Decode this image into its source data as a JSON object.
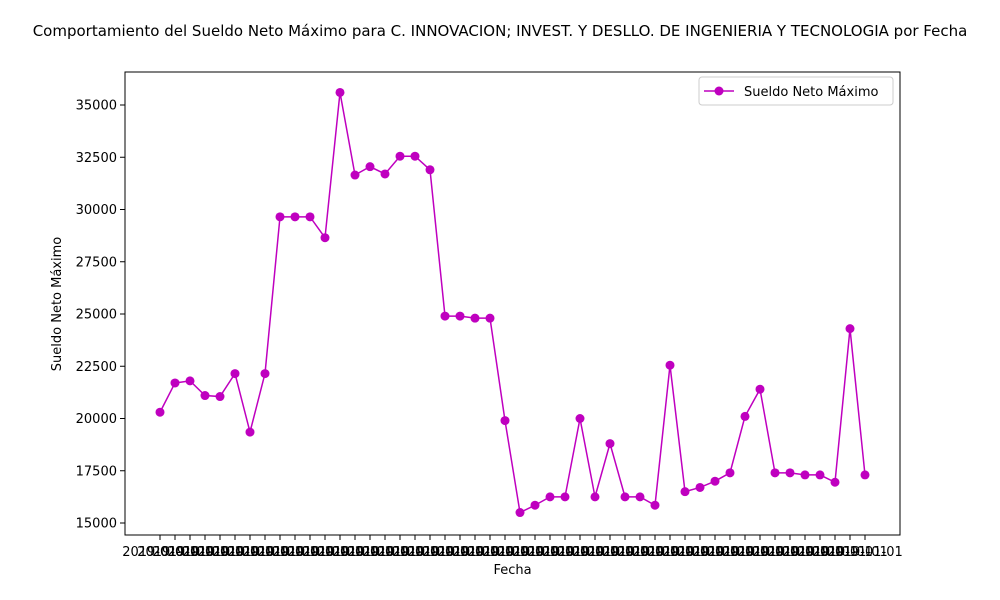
{
  "chart_data": {
    "type": "line",
    "title": "Comportamiento del Sueldo Neto Máximo para C. INNOVACION; INVEST. Y DESLLO. DE INGENIERIA Y TECNOLOGIA por Fecha",
    "xlabel": "Fecha",
    "ylabel": "Sueldo Neto Máximo",
    "ylim": [
      15000,
      35000
    ],
    "yticks": [
      "15000",
      "17500",
      "20000",
      "22500",
      "25000",
      "27500",
      "30000",
      "32500",
      "35000"
    ],
    "x_tick_text": "2019-01-01",
    "legend": {
      "position": "upper right"
    },
    "series": [
      {
        "name": "Sueldo Neto Máximo",
        "color": "#bf00bf",
        "marker": "circle",
        "values": [
          20300,
          21700,
          21800,
          21100,
          21050,
          22150,
          19350,
          22150,
          29650,
          29650,
          29650,
          28650,
          35600,
          31650,
          32050,
          31700,
          32550,
          32550,
          31900,
          24900,
          24900,
          24800,
          24800,
          19900,
          15500,
          15850,
          16250,
          16250,
          20000,
          16250,
          18800,
          16250,
          16250,
          15850,
          22550,
          16500,
          16700,
          17000,
          17400,
          20100,
          21400,
          17400,
          17400,
          17300,
          17300,
          16950,
          24300,
          17300
        ]
      }
    ]
  }
}
